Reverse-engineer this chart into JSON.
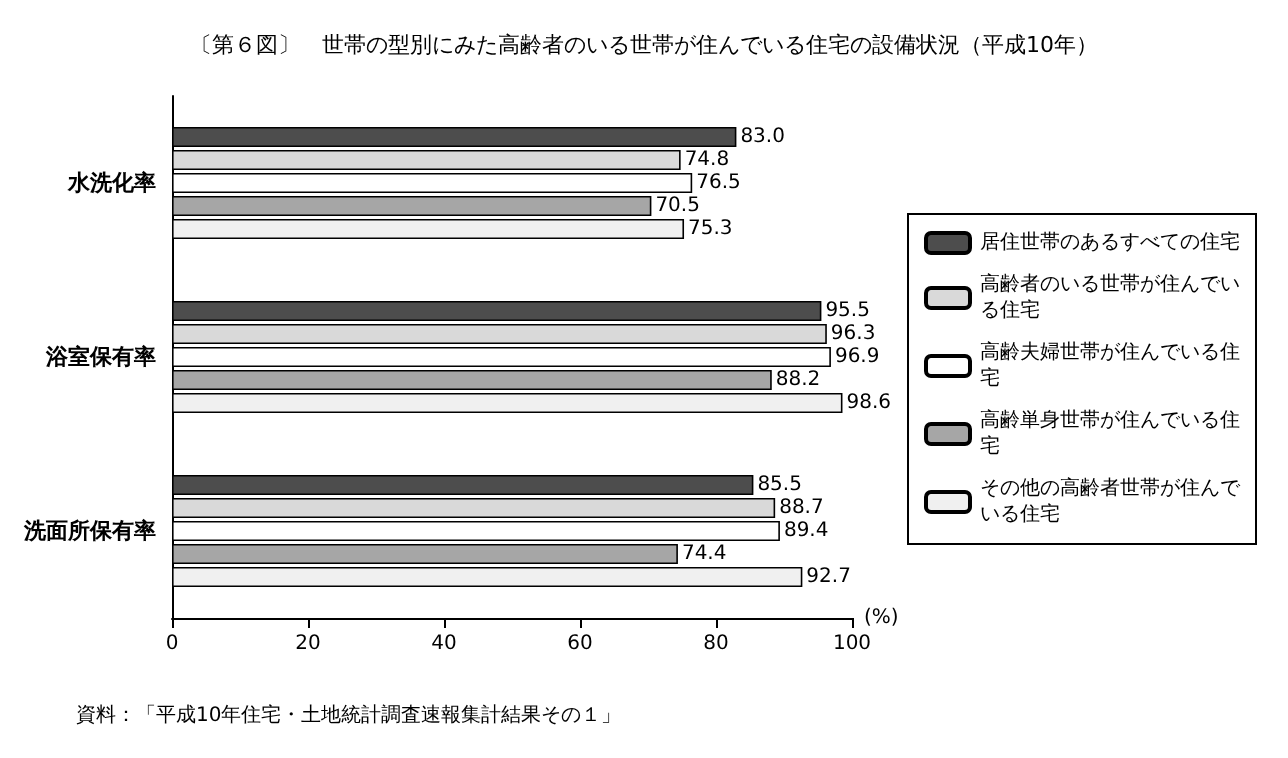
{
  "chart_data": {
    "type": "bar",
    "orientation": "horizontal",
    "title": "〔第６図〕　世帯の型別にみた高齢者のいる世帯が住んでいる住宅の設備状況（平成10年）",
    "categories": [
      "水洗化率",
      "浴室保有率",
      "洗面所保有率"
    ],
    "series": [
      {
        "name": "居住世帯のあるすべての住宅",
        "color": "#4d4d4d",
        "values": [
          83.0,
          95.5,
          85.5
        ],
        "value_labels": [
          "83.0",
          "95.5",
          "85.5"
        ]
      },
      {
        "name": "高齢者のいる世帯が住んでいる住宅",
        "color": "#d9d9d9",
        "values": [
          74.8,
          96.3,
          88.7
        ],
        "value_labels": [
          "74.8",
          "96.3",
          "88.7"
        ]
      },
      {
        "name": "高齢夫婦世帯が住んでいる住宅",
        "color": "#ffffff",
        "values": [
          76.5,
          96.9,
          89.4
        ],
        "value_labels": [
          "76.5",
          "96.9",
          "89.4"
        ]
      },
      {
        "name": "高齢単身世帯が住んでいる住宅",
        "color": "#a6a6a6",
        "values": [
          70.5,
          88.2,
          74.4
        ],
        "value_labels": [
          "70.5",
          "88.2",
          "74.4"
        ]
      },
      {
        "name": "その他の高齢者世帯が住んでいる住宅",
        "color": "#f0f0f0",
        "values": [
          75.3,
          98.6,
          92.7
        ],
        "value_labels": [
          "75.3",
          "98.6",
          "92.7"
        ]
      }
    ],
    "xlim": [
      0,
      100
    ],
    "xticks": [
      0,
      20,
      40,
      60,
      80,
      100
    ],
    "xlabel": "(%)",
    "grid": false,
    "legend": "right",
    "annotations": [
      "資料：「平成10年住宅・土地統計調査速報集計結果その１」"
    ]
  }
}
